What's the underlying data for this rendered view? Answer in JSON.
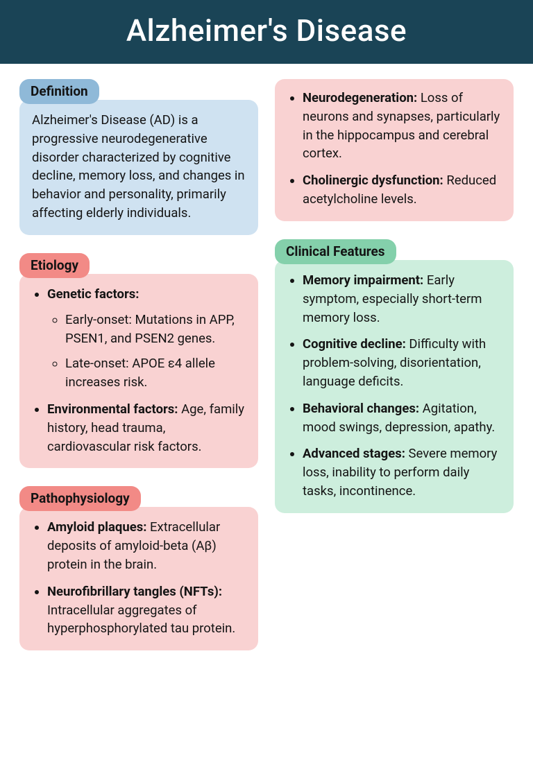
{
  "title": "Alzheimer's Disease",
  "colors": {
    "header_bg": "#1a4456",
    "header_fg": "#ffffff",
    "blue_pill": "#8fb9d8",
    "blue_box": "#cfe2f1",
    "red_pill": "#f28a86",
    "red_box": "#f9d2d2",
    "green_pill": "#84d0ab",
    "green_box": "#cdeedd",
    "text": "#141414"
  },
  "typography": {
    "title_fontsize": 44,
    "pill_fontsize": 19,
    "body_fontsize": 18.5,
    "line_height": 1.45
  },
  "sections": {
    "definition": {
      "label": "Definition",
      "text": "Alzheimer's Disease (AD) is a progressive neurodegenerative disorder characterized by cognitive decline, memory loss, and changes in behavior and personality, primarily affecting elderly individuals."
    },
    "etiology": {
      "label": "Etiology",
      "items": [
        {
          "term": "Genetic factors:",
          "sub": [
            "Early-onset: Mutations in APP, PSEN1, and PSEN2 genes.",
            "Late-onset: APOE ε4 allele increases risk."
          ]
        },
        {
          "term": "Environmental factors:",
          "rest": " Age, family history, head trauma, cardiovascular risk factors."
        }
      ]
    },
    "pathophysiology": {
      "label": "Pathophysiology",
      "items": [
        {
          "term": "Amyloid plaques:",
          "rest": " Extracellular deposits of amyloid-beta (Aβ) protein in the brain."
        },
        {
          "term": "Neurofibrillary tangles (NFTs):",
          "rest": " Intracellular aggregates of hyperphosphorylated tau protein."
        }
      ],
      "items_cont": [
        {
          "term": "Neurodegeneration:",
          "rest": " Loss of neurons and synapses, particularly in the hippocampus and cerebral cortex."
        },
        {
          "term": "Cholinergic dysfunction:",
          "rest": " Reduced acetylcholine levels."
        }
      ]
    },
    "clinical": {
      "label": "Clinical Features",
      "items": [
        {
          "term": "Memory impairment:",
          "rest": " Early symptom, especially short-term memory loss."
        },
        {
          "term": "Cognitive decline:",
          "rest": " Difficulty with problem-solving, disorientation, language deficits."
        },
        {
          "term": "Behavioral changes:",
          "rest": " Agitation, mood swings, depression, apathy."
        },
        {
          "term": "Advanced stages:",
          "rest": " Severe memory loss, inability to perform daily tasks, incontinence."
        }
      ]
    }
  }
}
